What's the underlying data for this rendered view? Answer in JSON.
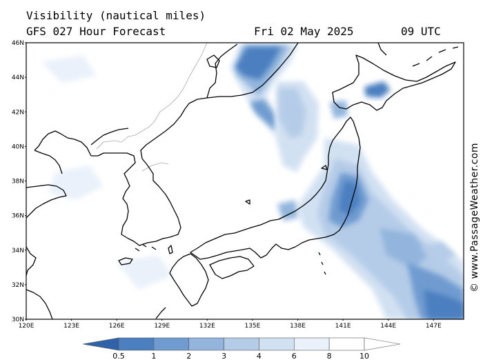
{
  "header": {
    "title": "Visibility (nautical miles)",
    "model": "GFS 027 Hour Forecast",
    "date": "Fri 02 May 2025",
    "time": "09 UTC"
  },
  "credit": "© www.PassageWeather.com",
  "map": {
    "lat_labels": [
      "46N",
      "44N",
      "42N",
      "40N",
      "38N",
      "36N",
      "34N",
      "32N",
      "30N"
    ],
    "lon_labels": [
      "120E",
      "123E",
      "126E",
      "129E",
      "132E",
      "135E",
      "138E",
      "141E",
      "144E",
      "147E"
    ],
    "lat_range": [
      30,
      46
    ],
    "lon_range": [
      120,
      149
    ]
  },
  "legend": {
    "labels": [
      "0.5",
      "1",
      "2",
      "3",
      "4",
      "6",
      "8",
      "10"
    ],
    "colors": [
      "#2f62a8",
      "#4b7fc0",
      "#6f9bd0",
      "#93b5dd",
      "#b5cce8",
      "#d2e1f2",
      "#eaf1fa",
      "#ffffff"
    ]
  }
}
